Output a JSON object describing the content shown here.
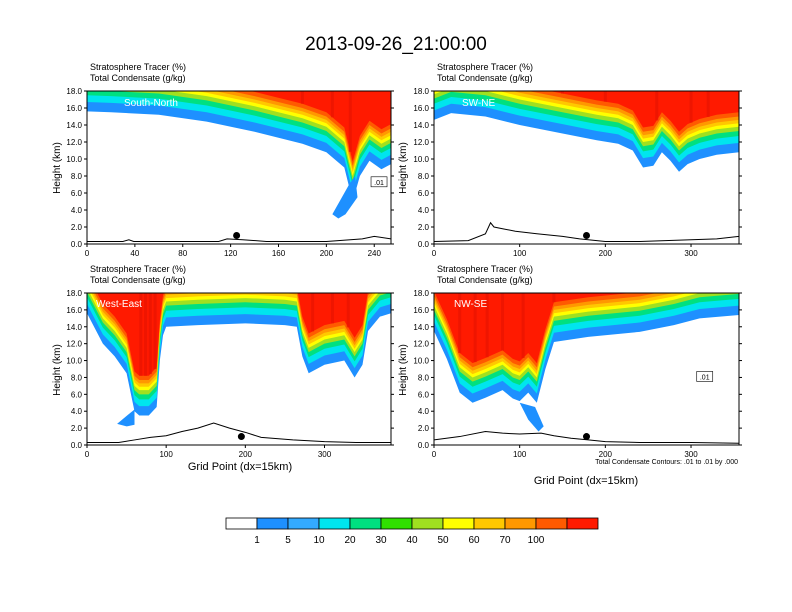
{
  "figure": {
    "title": "2013-09-26_21:00:00",
    "contour_note": "Total Condensate Contours: .01 to .01 by .000"
  },
  "colors": {
    "levels": [
      "#ffffff",
      "#1e90ff",
      "#33aaff",
      "#00e5ee",
      "#00e080",
      "#30e000",
      "#a0e020",
      "#ffff00",
      "#ffc800",
      "#ff9800",
      "#ff5a00",
      "#ff1a00"
    ],
    "band_order": [
      "#1e90ff",
      "#00e5ee",
      "#00e080",
      "#a0e020",
      "#ffff00",
      "#ffc800",
      "#ff9800",
      "#ff5a00"
    ],
    "top": "#ff1a00",
    "dark_red": "#e81400",
    "marker": "#000000"
  },
  "colorbar": {
    "labels": [
      "1",
      "5",
      "10",
      "20",
      "30",
      "40",
      "50",
      "60",
      "70",
      "100"
    ]
  },
  "chart_data": [
    {
      "type": "heatmap",
      "panel_label": "South-North",
      "header1": "Stratosphere Tracer   (%)",
      "header2": "Total Condensate   (g/kg)",
      "ylabel": "Height (km)",
      "xlabel": "",
      "xlim": [
        0,
        254
      ],
      "ylim": [
        0,
        18
      ],
      "xticks": [
        "0",
        "40",
        "80",
        "120",
        "160",
        "200",
        "240"
      ],
      "yticks": [
        "0.0",
        "2.0",
        "4.0",
        "6.0",
        "8.0",
        "10.0",
        "12.0",
        "14.0",
        "16.0",
        "18.0"
      ],
      "tracer_edge": [
        [
          0,
          15.6
        ],
        [
          20,
          15.5
        ],
        [
          60,
          15.2
        ],
        [
          100,
          14.4
        ],
        [
          140,
          13.2
        ],
        [
          180,
          11.8
        ],
        [
          200,
          10.8
        ],
        [
          215,
          9.0
        ],
        [
          222,
          5.0
        ],
        [
          228,
          8.0
        ],
        [
          236,
          9.8
        ],
        [
          246,
          8.8
        ],
        [
          254,
          9.4
        ]
      ],
      "blue_plume": [
        [
          205,
          3.5
        ],
        [
          213,
          5.5
        ],
        [
          219,
          7.0
        ],
        [
          224,
          8.0
        ],
        [
          226,
          5.5
        ],
        [
          216,
          3.5
        ],
        [
          210,
          3.0
        ]
      ],
      "dark_red_streaks_x": [
        12,
        24,
        36,
        55,
        180,
        205,
        220
      ],
      "contour_label": ".01",
      "terrain": [
        [
          0,
          0.3
        ],
        [
          30,
          0.3
        ],
        [
          35,
          0.5
        ],
        [
          39,
          0.3
        ],
        [
          100,
          0.3
        ],
        [
          110,
          0.3
        ],
        [
          117,
          0.6
        ],
        [
          130,
          0.5
        ],
        [
          150,
          0.3
        ],
        [
          200,
          0.3
        ],
        [
          210,
          0.4
        ],
        [
          230,
          0.6
        ],
        [
          240,
          0.9
        ],
        [
          254,
          0.6
        ]
      ],
      "marker": [
        125,
        1.0
      ]
    },
    {
      "type": "heatmap",
      "panel_label": "SW-NE",
      "header1": "Stratosphere Tracer   (%)",
      "header2": "Total Condensate   (g/kg)",
      "ylabel": "Height (km)",
      "xlabel": "",
      "xlim": [
        0,
        356
      ],
      "ylim": [
        0,
        18
      ],
      "xticks": [
        "0",
        "100",
        "200",
        "300"
      ],
      "yticks": [
        "0.0",
        "2.0",
        "4.0",
        "6.0",
        "8.0",
        "10.0",
        "12.0",
        "14.0",
        "16.0",
        "18.0"
      ],
      "tracer_edge": [
        [
          0,
          14.6
        ],
        [
          20,
          15.4
        ],
        [
          60,
          15.0
        ],
        [
          100,
          14.0
        ],
        [
          150,
          13.0
        ],
        [
          190,
          12.2
        ],
        [
          215,
          11.8
        ],
        [
          232,
          11.0
        ],
        [
          244,
          9.0
        ],
        [
          256,
          9.2
        ],
        [
          266,
          10.8
        ],
        [
          276,
          9.8
        ],
        [
          286,
          8.5
        ],
        [
          296,
          9.4
        ],
        [
          310,
          10.0
        ],
        [
          330,
          10.5
        ],
        [
          356,
          10.8
        ]
      ],
      "blue_plume": [],
      "dark_red_streaks_x": [
        70,
        110,
        150,
        200,
        260,
        300,
        320
      ],
      "contour_label": "",
      "terrain": [
        [
          0,
          0.3
        ],
        [
          40,
          0.4
        ],
        [
          60,
          1.2
        ],
        [
          66,
          2.5
        ],
        [
          70,
          2.0
        ],
        [
          80,
          1.8
        ],
        [
          95,
          1.5
        ],
        [
          120,
          1.2
        ],
        [
          150,
          0.9
        ],
        [
          170,
          0.6
        ],
        [
          200,
          0.3
        ],
        [
          240,
          0.3
        ],
        [
          300,
          0.5
        ],
        [
          330,
          0.6
        ],
        [
          356,
          0.9
        ]
      ],
      "marker": [
        178,
        1.0
      ]
    },
    {
      "type": "heatmap",
      "panel_label": "West-East",
      "header1": "Stratosphere Tracer   (%)",
      "header2": "Total Condensate   (g/kg)",
      "ylabel": "Height (km)",
      "xlabel": "Grid Point (dx=15km)",
      "xlim": [
        0,
        384
      ],
      "ylim": [
        0,
        18
      ],
      "xticks": [
        "0",
        "100",
        "200",
        "300"
      ],
      "yticks": [
        "0.0",
        "2.0",
        "4.0",
        "6.0",
        "8.0",
        "10.0",
        "12.0",
        "14.0",
        "16.0",
        "18.0"
      ],
      "tracer_edge": [
        [
          0,
          15.6
        ],
        [
          20,
          12.0
        ],
        [
          35,
          10.5
        ],
        [
          50,
          8.5
        ],
        [
          60,
          4.0
        ],
        [
          66,
          3.5
        ],
        [
          78,
          3.5
        ],
        [
          88,
          4.5
        ],
        [
          92,
          10.0
        ],
        [
          96,
          13.0
        ],
        [
          100,
          14.0
        ],
        [
          140,
          14.2
        ],
        [
          200,
          14.4
        ],
        [
          250,
          14.2
        ],
        [
          265,
          14.0
        ],
        [
          272,
          10.5
        ],
        [
          280,
          8.5
        ],
        [
          300,
          9.5
        ],
        [
          325,
          10.0
        ],
        [
          338,
          8.0
        ],
        [
          348,
          9.5
        ],
        [
          355,
          13.5
        ],
        [
          370,
          15.2
        ],
        [
          384,
          15.6
        ]
      ],
      "blue_plume": [
        [
          38,
          2.5
        ],
        [
          52,
          3.6
        ],
        [
          60,
          4.2
        ],
        [
          60,
          2.4
        ],
        [
          50,
          2.2
        ]
      ],
      "dark_red_streaks_x": [
        68,
        74,
        80,
        86,
        285,
        310,
        330
      ],
      "contour_label": "",
      "terrain": [
        [
          0,
          0.3
        ],
        [
          40,
          0.3
        ],
        [
          60,
          0.6
        ],
        [
          80,
          0.9
        ],
        [
          100,
          1.1
        ],
        [
          120,
          1.6
        ],
        [
          140,
          2.0
        ],
        [
          160,
          2.6
        ],
        [
          180,
          2.0
        ],
        [
          200,
          1.5
        ],
        [
          220,
          0.9
        ],
        [
          260,
          0.6
        ],
        [
          300,
          0.4
        ],
        [
          340,
          0.3
        ],
        [
          384,
          0.3
        ]
      ],
      "marker": [
        195,
        1.0
      ]
    },
    {
      "type": "heatmap",
      "panel_label": "NW-SE",
      "header1": "Stratosphere Tracer   (%)",
      "header2": "Total Condensate   (g/kg)",
      "ylabel": "Height (km)",
      "xlabel": "Grid Point (dx=15km)",
      "xlim": [
        0,
        356
      ],
      "ylim": [
        0,
        18
      ],
      "xticks": [
        "0",
        "100",
        "200",
        "300"
      ],
      "yticks": [
        "0.0",
        "2.0",
        "4.0",
        "6.0",
        "8.0",
        "10.0",
        "12.0",
        "14.0",
        "16.0",
        "18.0"
      ],
      "tracer_edge": [
        [
          0,
          13.5
        ],
        [
          15,
          10.2
        ],
        [
          30,
          6.2
        ],
        [
          45,
          5.0
        ],
        [
          60,
          5.6
        ],
        [
          80,
          6.5
        ],
        [
          92,
          5.5
        ],
        [
          100,
          5.2
        ],
        [
          110,
          6.2
        ],
        [
          120,
          5.0
        ],
        [
          130,
          9.0
        ],
        [
          140,
          12.2
        ],
        [
          180,
          12.8
        ],
        [
          240,
          13.4
        ],
        [
          280,
          14.2
        ],
        [
          310,
          15.0
        ],
        [
          356,
          15.4
        ]
      ],
      "blue_plume": [
        [
          100,
          5.0
        ],
        [
          110,
          3.0
        ],
        [
          122,
          1.6
        ],
        [
          128,
          2.2
        ],
        [
          118,
          4.5
        ]
      ],
      "dark_red_streaks_x": [
        30,
        48,
        62,
        80,
        104,
        140,
        240
      ],
      "contour_label": ".01",
      "terrain": [
        [
          0,
          0.6
        ],
        [
          30,
          1.0
        ],
        [
          60,
          1.6
        ],
        [
          80,
          1.4
        ],
        [
          100,
          1.3
        ],
        [
          125,
          1.4
        ],
        [
          140,
          1.1
        ],
        [
          160,
          0.8
        ],
        [
          180,
          0.6
        ],
        [
          200,
          0.4
        ],
        [
          240,
          0.3
        ],
        [
          300,
          0.3
        ],
        [
          356,
          0.2
        ]
      ],
      "marker": [
        178,
        1.0
      ]
    }
  ]
}
